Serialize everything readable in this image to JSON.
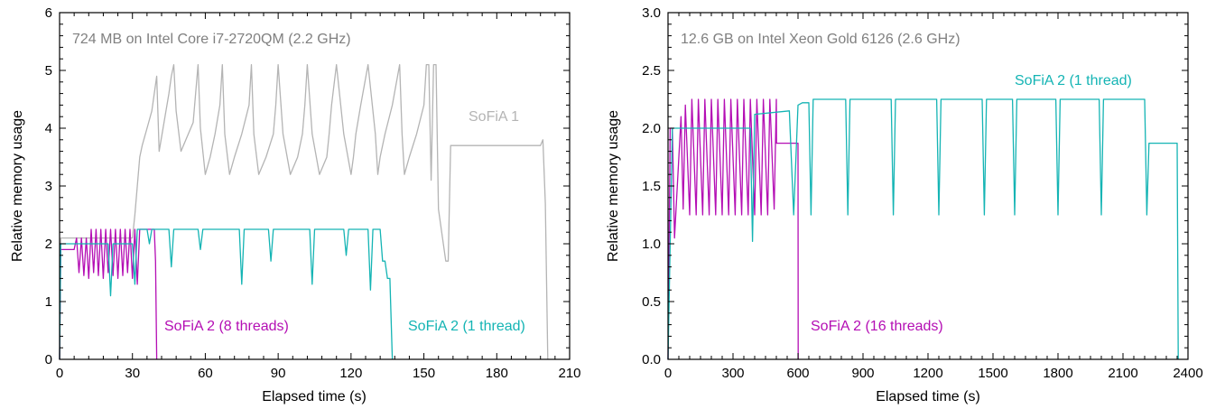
{
  "colors": {
    "sofia1": "#b4b4b4",
    "sofia2_multi": "#b40eb4",
    "sofia2_single": "#14b4b4",
    "note": "#808080"
  },
  "chart_data": [
    {
      "type": "line",
      "title": "724 MB on Intel Core i7-2720QM (2.2 GHz)",
      "xlabel": "Elapsed time (s)",
      "ylabel": "Relative memory usage",
      "xlim": [
        0,
        210
      ],
      "ylim": [
        0,
        6
      ],
      "xticks": [
        "0",
        "30",
        "60",
        "90",
        "120",
        "150",
        "180",
        "210"
      ],
      "yticks": [
        "0",
        "1",
        "2",
        "3",
        "4",
        "5",
        "6"
      ],
      "grid": false,
      "series": [
        {
          "name": "SoFiA 1",
          "color_key": "sofia1",
          "x": [
            0,
            0.5,
            1,
            30,
            31,
            32,
            33,
            34,
            36,
            38,
            40,
            41,
            43,
            45,
            46,
            47,
            48,
            50,
            52,
            55,
            56,
            57,
            58,
            60,
            62,
            64,
            66,
            67,
            68,
            70,
            72,
            75,
            78,
            79,
            80,
            82,
            85,
            88,
            89,
            90,
            92,
            95,
            98,
            100,
            101,
            102,
            104,
            107,
            110,
            111,
            112,
            114,
            117,
            120,
            121,
            122,
            124,
            127,
            130,
            131,
            132,
            134,
            137,
            140,
            141,
            142,
            144,
            147,
            150,
            151,
            152,
            153,
            154,
            155,
            156,
            159,
            160,
            161,
            198,
            199,
            200,
            201
          ],
          "y": [
            0,
            2.1,
            2.1,
            2.1,
            2.5,
            3.0,
            3.5,
            3.7,
            4.0,
            4.3,
            4.9,
            3.6,
            4.1,
            4.6,
            4.9,
            5.1,
            4.3,
            3.6,
            3.8,
            4.1,
            4.6,
            5.1,
            4.0,
            3.2,
            3.5,
            3.9,
            4.4,
            5.1,
            3.9,
            3.2,
            3.5,
            3.9,
            4.4,
            5.1,
            3.9,
            3.2,
            3.5,
            3.9,
            4.4,
            5.1,
            3.9,
            3.2,
            3.5,
            3.9,
            4.4,
            5.1,
            3.9,
            3.2,
            3.5,
            3.9,
            4.4,
            5.1,
            3.9,
            3.2,
            3.5,
            3.9,
            4.4,
            5.1,
            3.9,
            3.2,
            3.5,
            3.9,
            4.4,
            5.1,
            3.9,
            3.2,
            3.5,
            3.9,
            4.4,
            5.1,
            5.1,
            3.1,
            5.1,
            5.1,
            2.6,
            1.7,
            1.7,
            3.7,
            3.7,
            3.8,
            2.7,
            0
          ]
        },
        {
          "name": "SoFiA 2 (8 threads)",
          "color_key": "sofia2_multi",
          "x": [
            0,
            0.5,
            2,
            6,
            7,
            8,
            9,
            10,
            11,
            12,
            13,
            14,
            15,
            16,
            17,
            18,
            19,
            20,
            21,
            22,
            23,
            24,
            25,
            26,
            27,
            28,
            29,
            30,
            31,
            32,
            33,
            34,
            35,
            36,
            37,
            38,
            39,
            39.5,
            40
          ],
          "y": [
            0,
            1.9,
            1.9,
            1.9,
            2.1,
            1.5,
            2.1,
            1.45,
            2.1,
            1.4,
            2.25,
            1.5,
            2.25,
            1.45,
            2.25,
            1.4,
            2.25,
            1.5,
            2.25,
            1.45,
            2.25,
            1.4,
            2.25,
            1.45,
            2.25,
            1.5,
            2.25,
            1.4,
            2.25,
            1.3,
            2.25,
            2.25,
            2.25,
            2.25,
            2.25,
            2.25,
            2.25,
            1.7,
            0
          ]
        },
        {
          "name": "SoFiA 2 (1 thread)",
          "color_key": "sofia2_single",
          "x": [
            0,
            0.5,
            1,
            20,
            21,
            22,
            30,
            31,
            32,
            33,
            34,
            36,
            37,
            38,
            45,
            46,
            47,
            57,
            58,
            59,
            74,
            75,
            76,
            86,
            87,
            88,
            103,
            104,
            105,
            117,
            118,
            119,
            127,
            128,
            129,
            132,
            133,
            134,
            135,
            136,
            137
          ],
          "y": [
            0,
            2.0,
            2.0,
            2.0,
            1.1,
            2.0,
            2.0,
            1.3,
            2.25,
            2.25,
            2.25,
            2.25,
            2.0,
            2.25,
            2.25,
            1.6,
            2.25,
            2.25,
            1.9,
            2.25,
            2.25,
            1.3,
            2.25,
            2.25,
            1.7,
            2.25,
            2.25,
            1.3,
            2.25,
            2.25,
            1.8,
            2.25,
            2.25,
            1.2,
            2.25,
            2.25,
            1.7,
            1.7,
            1.4,
            1.4,
            0
          ]
        }
      ],
      "annotations": [
        {
          "text": "SoFiA 1",
          "color_key": "sofia1"
        },
        {
          "text": "SoFiA 2 (8 threads)",
          "color_key": "sofia2_multi"
        },
        {
          "text": "SoFiA 2 (1 thread)",
          "color_key": "sofia2_single"
        }
      ]
    },
    {
      "type": "line",
      "title": "12.6 GB on Intel Xeon Gold 6126 (2.6 GHz)",
      "xlabel": "Elapsed time (s)",
      "ylabel": "Relative memory usage",
      "xlim": [
        0,
        2400
      ],
      "ylim": [
        0,
        3.0
      ],
      "xticks": [
        "0",
        "300",
        "600",
        "900",
        "1200",
        "1500",
        "1800",
        "2100",
        "2400"
      ],
      "yticks": [
        "0.0",
        "0.5",
        "1.0",
        "1.5",
        "2.0",
        "2.5",
        "3.0"
      ],
      "grid": false,
      "series": [
        {
          "name": "SoFiA 2 (16 threads)",
          "color_key": "sofia2_multi",
          "x": [
            0,
            10,
            20,
            30,
            60,
            70,
            80,
            100,
            110,
            130,
            140,
            160,
            170,
            190,
            200,
            220,
            230,
            250,
            260,
            280,
            290,
            310,
            320,
            340,
            350,
            370,
            380,
            400,
            410,
            430,
            440,
            460,
            470,
            490,
            500,
            501,
            520,
            590,
            600,
            601
          ],
          "y": [
            0,
            2.0,
            2.0,
            1.05,
            2.1,
            1.3,
            2.2,
            1.25,
            2.25,
            1.25,
            2.25,
            1.25,
            2.25,
            1.25,
            2.25,
            1.25,
            2.25,
            1.25,
            2.25,
            1.25,
            2.25,
            1.25,
            2.25,
            1.25,
            2.25,
            1.25,
            2.25,
            1.25,
            2.25,
            1.25,
            2.25,
            1.25,
            2.25,
            1.3,
            2.25,
            1.87,
            1.87,
            1.87,
            1.87,
            0
          ]
        },
        {
          "name": "SoFiA 2 (1 thread)",
          "color_key": "sofia2_single",
          "x": [
            0,
            10,
            20,
            380,
            390,
            400,
            560,
            580,
            600,
            620,
            650,
            660,
            670,
            820,
            830,
            840,
            1030,
            1040,
            1050,
            1240,
            1250,
            1260,
            1450,
            1460,
            1470,
            1590,
            1600,
            1610,
            1790,
            1800,
            1810,
            1990,
            2000,
            2010,
            2200,
            2210,
            2220,
            2340,
            2350,
            2355
          ],
          "y": [
            0,
            1.0,
            2.0,
            2.0,
            1.02,
            2.12,
            2.15,
            1.25,
            2.2,
            2.22,
            2.22,
            1.25,
            2.25,
            2.25,
            1.25,
            2.25,
            2.25,
            1.25,
            2.25,
            2.25,
            1.25,
            2.25,
            2.25,
            1.25,
            2.25,
            2.25,
            1.25,
            2.25,
            2.25,
            1.25,
            2.25,
            2.25,
            1.25,
            2.25,
            2.25,
            1.25,
            1.87,
            1.87,
            1.87,
            0
          ]
        }
      ],
      "annotations": [
        {
          "text": "SoFiA 2 (1 thread)",
          "color_key": "sofia2_single"
        },
        {
          "text": "SoFiA 2 (16 threads)",
          "color_key": "sofia2_multi"
        }
      ]
    }
  ]
}
